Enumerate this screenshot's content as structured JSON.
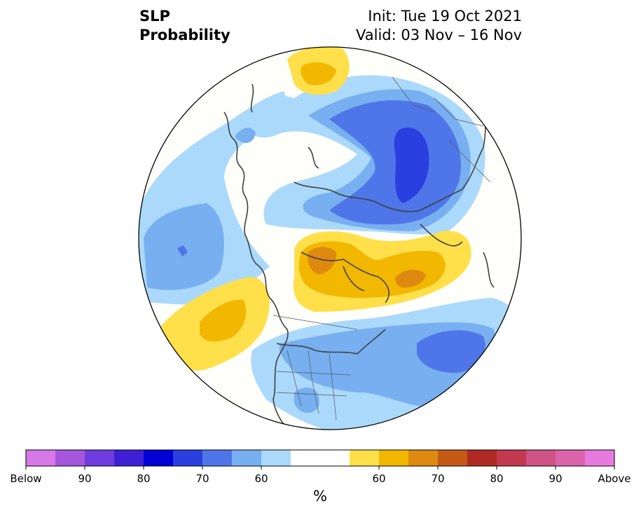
{
  "title": {
    "variable": "SLP",
    "subtitle": "Probability",
    "init": "Init: Tue 19 Oct 2021",
    "valid": "Valid: 03 Nov – 16 Nov"
  },
  "map": {
    "projection": "north-polar-stereographic",
    "coastlines": true,
    "country_borders": true,
    "us_state_borders": true,
    "features": [
      {
        "name": "siberia-below",
        "category": "below",
        "level": "80"
      },
      {
        "name": "north-pacific-below",
        "category": "below",
        "level": "70"
      },
      {
        "name": "north-atlantic-below",
        "category": "below",
        "level": "70"
      },
      {
        "name": "canada-arctic-above",
        "category": "above",
        "level": "70"
      },
      {
        "name": "greenland-sea-above",
        "category": "above",
        "level": "70"
      },
      {
        "name": "gulf-of-alaska-above",
        "category": "above",
        "level": "65"
      },
      {
        "name": "central-asia-above",
        "category": "above",
        "level": "65"
      }
    ]
  },
  "colorbar": {
    "unit": "%",
    "colors": [
      "#d678e8",
      "#a656dd",
      "#6f3ddf",
      "#3f20d6",
      "#0000d4",
      "#2a3fe0",
      "#4e76e8",
      "#77aff0",
      "#abd9fb",
      "#ffffff",
      "#ffffff",
      "#ffe04a",
      "#f2b700",
      "#de8a10",
      "#c55a16",
      "#b02a24",
      "#c23a4f",
      "#cf5384",
      "#da63aa",
      "#e67ade"
    ],
    "tick_labels": [
      {
        "label": "Below",
        "index": 0
      },
      {
        "label": "90",
        "index": 2
      },
      {
        "label": "80",
        "index": 4
      },
      {
        "label": "70",
        "index": 6
      },
      {
        "label": "60",
        "index": 8
      },
      {
        "label": "60",
        "index": 12
      },
      {
        "label": "70",
        "index": 14
      },
      {
        "label": "80",
        "index": 16
      },
      {
        "label": "90",
        "index": 18
      },
      {
        "label": "Above",
        "index": 20
      }
    ]
  }
}
